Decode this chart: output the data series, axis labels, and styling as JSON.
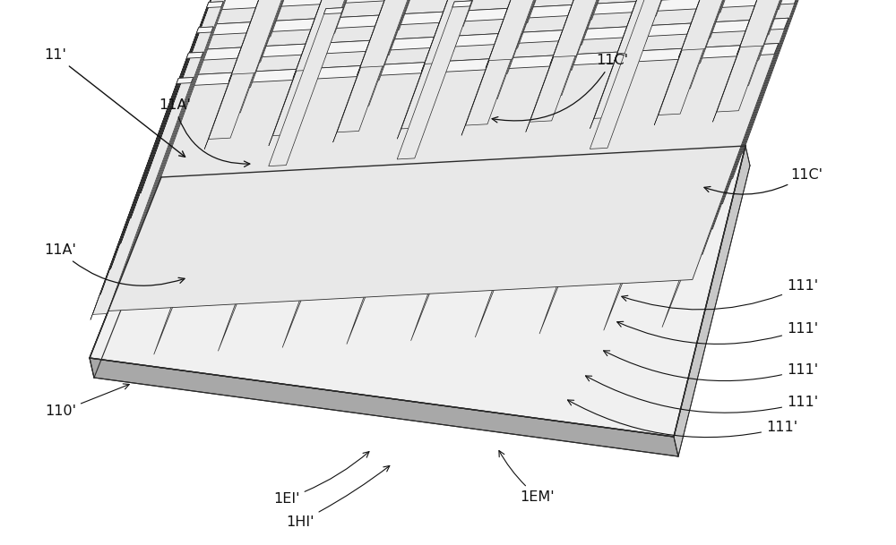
{
  "bg_color": "#ffffff",
  "line_color": "#2a2a2a",
  "fill_light": "#e8e8e8",
  "fill_mid": "#c8c8c8",
  "fill_dark": "#a8a8a8",
  "fill_white": "#f5f5f5",
  "fill_base": "#f0f0f0",
  "labels": {
    "11p": "11'",
    "11Ap": "11A'",
    "11Cp": "11C'",
    "110p": "110'",
    "111p": "111'",
    "1EIp": "1EI'",
    "1HIp": "1HI'",
    "1EMp": "1EM'"
  },
  "figsize": [
    10.0,
    6.09
  ],
  "dpi": 100
}
